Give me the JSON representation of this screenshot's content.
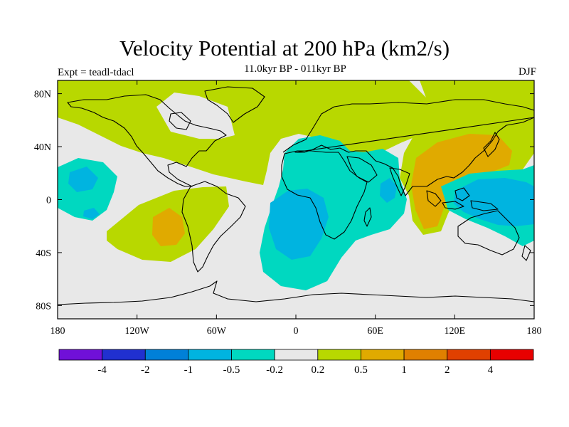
{
  "title": "Velocity Potential at 200 hPa (km2/s)",
  "subtitle": "11.0kyr BP - 011kyr BP",
  "expt_label": "Expt = teadl-tdacl",
  "season": "DJF",
  "map": {
    "projection": "cylindrical-equidistant",
    "lon_range": [
      -180,
      180
    ],
    "lat_range": [
      -90,
      90
    ],
    "background_color": "#e8e8e8",
    "coastline_color": "#000000",
    "x_ticks": [
      {
        "value": -180,
        "label": "180"
      },
      {
        "value": -120,
        "label": "120W"
      },
      {
        "value": -60,
        "label": "60W"
      },
      {
        "value": 0,
        "label": "0"
      },
      {
        "value": 60,
        "label": "60E"
      },
      {
        "value": 120,
        "label": "120E"
      },
      {
        "value": 180,
        "label": "180"
      }
    ],
    "y_ticks": [
      {
        "value": 80,
        "label": "80N"
      },
      {
        "value": 40,
        "label": "40N"
      },
      {
        "value": 0,
        "label": "0"
      },
      {
        "value": -40,
        "label": "40S"
      },
      {
        "value": -80,
        "label": "80S"
      }
    ],
    "regions": [
      {
        "name": "positive-north-pacific-atlantic",
        "level": "0.2 to 0.5",
        "color": "#b8d800"
      },
      {
        "name": "positive-east-pacific",
        "level": "0.2 to 0.5",
        "color": "#b8d800"
      },
      {
        "name": "positive-east-pacific-core",
        "level": "0.5 to 1",
        "color": "#e0aa00"
      },
      {
        "name": "positive-asia",
        "level": "0.2 to 0.5",
        "color": "#b8d800"
      },
      {
        "name": "positive-asia-core",
        "level": "0.5 to 1",
        "color": "#e0aa00"
      },
      {
        "name": "negative-atlantic-africa",
        "level": "-0.5 to -0.2",
        "color": "#00d8c0"
      },
      {
        "name": "negative-atlantic-africa-core",
        "level": "-1 to -0.5",
        "color": "#00b4e0"
      },
      {
        "name": "negative-west-pacific",
        "level": "-0.5 to -0.2",
        "color": "#00d8c0"
      },
      {
        "name": "negative-west-pacific-core",
        "level": "-1 to -0.5",
        "color": "#00b4e0"
      },
      {
        "name": "negative-central-pacific",
        "level": "-0.5 to -0.2",
        "color": "#00d8c0"
      },
      {
        "name": "negative-central-pacific-core",
        "level": "-1 to -0.5",
        "color": "#00b4e0"
      }
    ]
  },
  "colorbar": {
    "colors": [
      "#7010d8",
      "#2030d0",
      "#0080d8",
      "#00b4e0",
      "#00d8c0",
      "#e8e8e8",
      "#b8d800",
      "#e0aa00",
      "#e08000",
      "#e04000",
      "#e80000"
    ],
    "labels": [
      "-4",
      "-2",
      "-1",
      "-0.5",
      "-0.2",
      "0.2",
      "0.5",
      "1",
      "2",
      "4"
    ]
  }
}
